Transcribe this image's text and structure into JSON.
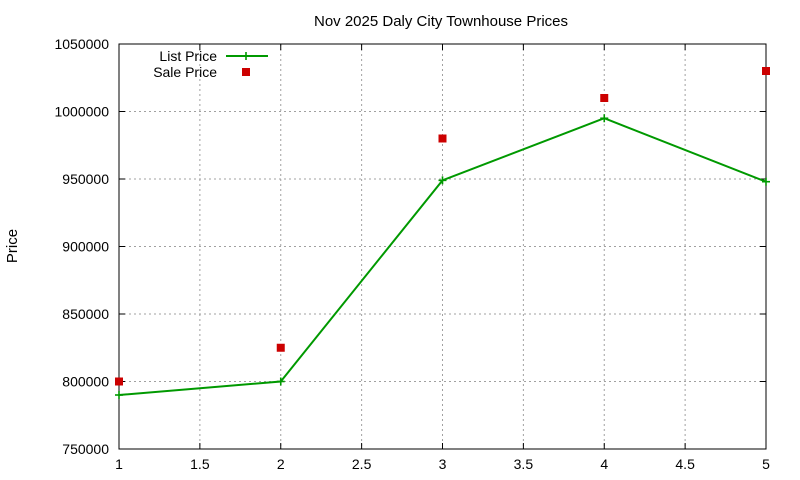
{
  "chart_data": {
    "type": "line",
    "title": "Nov 2025 Daly City Townhouse Prices",
    "xlabel": "",
    "ylabel": "Price",
    "xlim": [
      1,
      5
    ],
    "ylim": [
      750000,
      1050000
    ],
    "x_ticks": [
      "1",
      "1.5",
      "2",
      "2.5",
      "3",
      "3.5",
      "4",
      "4.5",
      "5"
    ],
    "y_ticks": [
      "750000",
      "800000",
      "850000",
      "900000",
      "950000",
      "1000000",
      "1050000"
    ],
    "grid": true,
    "legend_position": "top-left",
    "series": [
      {
        "name": "List Price",
        "style": "linespoints",
        "color": "#009900",
        "marker": "plus",
        "x": [
          1,
          2,
          3,
          4,
          5
        ],
        "y": [
          790000,
          800000,
          949000,
          995000,
          948000
        ]
      },
      {
        "name": "Sale Price",
        "style": "points",
        "color": "#cc0000",
        "marker": "square",
        "x": [
          1,
          2,
          3,
          4,
          5
        ],
        "y": [
          800000,
          825000,
          980000,
          1010000,
          1030000
        ]
      }
    ]
  }
}
